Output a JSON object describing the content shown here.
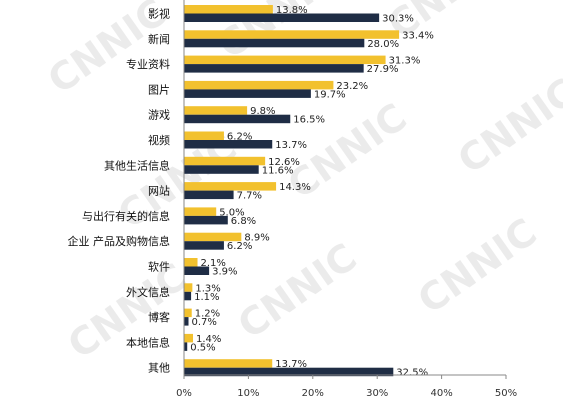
{
  "chart_data": {
    "type": "bar",
    "orientation": "horizontal",
    "categories": [
      "影视",
      "新闻",
      "专业资料",
      "图片",
      "游戏",
      "视频",
      "其他生活信息",
      "网站",
      "与出行有关的信息",
      "企业 产品及购物信息",
      "软件",
      "外文信息",
      "博客",
      "本地信息",
      "其他"
    ],
    "series": [
      {
        "color": "#f2c12e",
        "values": [
          13.8,
          33.4,
          31.3,
          23.2,
          9.8,
          6.2,
          12.6,
          14.3,
          5.0,
          8.9,
          2.1,
          1.3,
          1.2,
          1.4,
          13.7
        ],
        "labels": [
          "13.8%",
          "33.4%",
          "31.3%",
          "23.2%",
          "9.8%",
          "6.2%",
          "12.6%",
          "14.3%",
          "5.0%",
          "8.9%",
          "2.1%",
          "1.3%",
          "1.2%",
          "1.4%",
          "13.7%"
        ]
      },
      {
        "color": "#1f2d45",
        "values": [
          30.3,
          28.0,
          27.9,
          19.7,
          16.5,
          13.7,
          11.6,
          7.7,
          6.8,
          6.2,
          3.9,
          1.1,
          0.7,
          0.5,
          32.5
        ],
        "labels": [
          "30.3%",
          "28.0%",
          "27.9%",
          "19.7%",
          "16.5%",
          "13.7%",
          "11.6%",
          "7.7%",
          "6.8%",
          "6.2%",
          "3.9%",
          "1.1%",
          "0.7%",
          "0.5%",
          "32.5%"
        ]
      }
    ],
    "xlim": [
      0,
      50
    ],
    "xticks": [
      "0%",
      "10%",
      "20%",
      "30%",
      "40%",
      "50%"
    ],
    "grid": false,
    "watermark": "CNNIC"
  }
}
